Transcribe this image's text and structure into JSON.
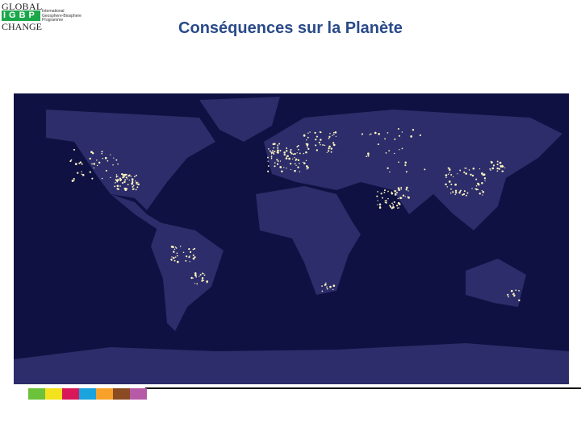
{
  "logo": {
    "line1": "GLOBAL",
    "acronym": "IGBP",
    "line2": "CHANGE",
    "subtitle": [
      "International",
      "Geosphere-Biosphere",
      "Programme"
    ],
    "brand_color": "#1aa84a"
  },
  "slide": {
    "title": "Conséquences sur la Planète",
    "title_color": "#2a4a8a"
  },
  "image": {
    "subject": "earth-at-night-map",
    "ocean_color": "#0f1142",
    "land_color": "#2c2d6a",
    "light_color": "#fff6c0"
  },
  "footer": {
    "strip_colors": [
      "#6cc23a",
      "#f3e21d",
      "#d9185a",
      "#1aa3dd",
      "#f7a12a",
      "#8a4a22",
      "#b65aa8"
    ]
  }
}
